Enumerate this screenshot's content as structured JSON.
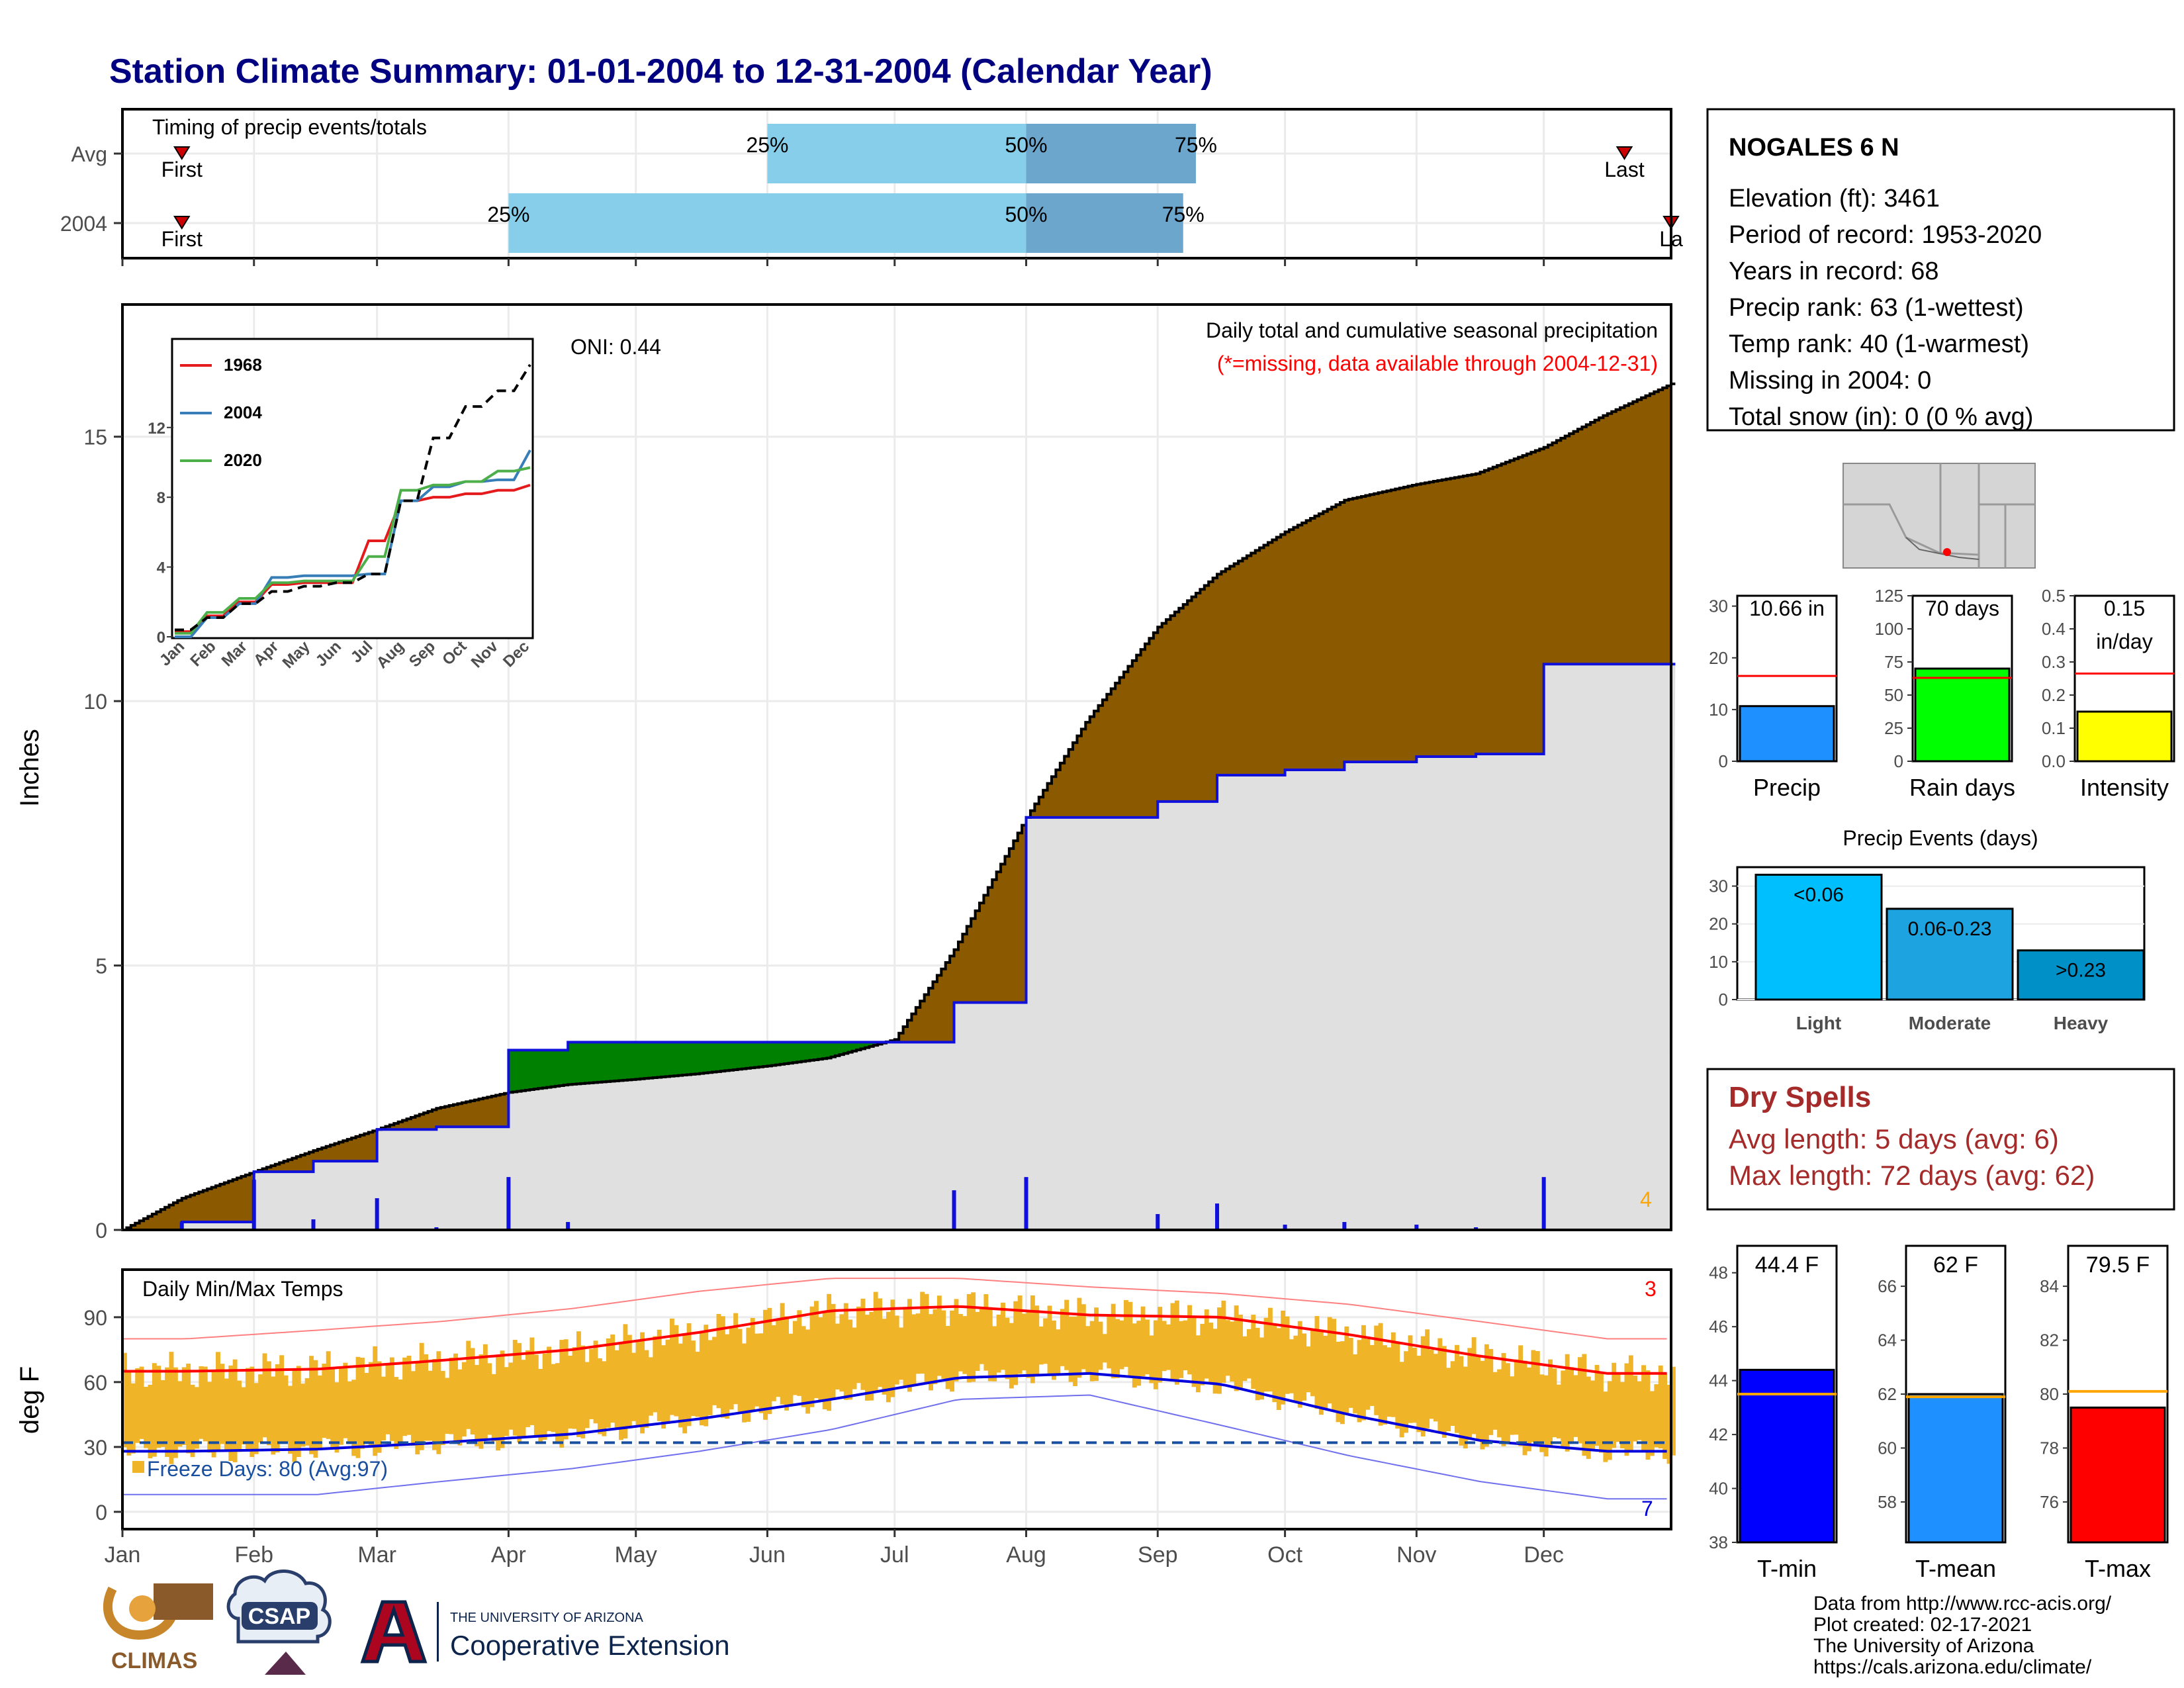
{
  "page_title": "Station Climate Summary: 01-01-2004 to 12-31-2004 (Calendar Year)",
  "timing": {
    "panel_title": "Timing of precip events/totals",
    "rows": [
      {
        "label": "Avg",
        "q25": "2004-06-01",
        "q50": "2004-08-01",
        "q75": "2004-09-10",
        "first": "2004-01-15",
        "last": "2004-12-20",
        "first_label": "First",
        "last_label": "Last"
      },
      {
        "label": "2004",
        "q25": "2004-04-01",
        "q50": "2004-08-01",
        "q75": "2004-09-07",
        "first": "2004-01-15",
        "last": "2004-12-31",
        "first_label": "First",
        "last_label": "La"
      }
    ],
    "pct_labels": [
      "25%",
      "50%",
      "75%"
    ]
  },
  "precip": {
    "ylabel": "Inches",
    "y_ticks": [
      0,
      5,
      10,
      15
    ],
    "ylim": [
      0,
      17.5
    ],
    "oni_label": "ONI: 0.44",
    "title_line": "Daily total and cumulative seasonal precipitation",
    "missing_line": "(*=missing, data available through 2004-12-31)",
    "corner_count": "4",
    "colors": {
      "above": "#8b5a00",
      "below": "#008000",
      "normal_fill": "#e0e0e0",
      "observed_line": "#1010dd",
      "avg_line": "#000000"
    }
  },
  "inset": {
    "y_ticks": [
      0,
      4,
      8,
      12
    ],
    "x_ticks": [
      "Jan",
      "Feb",
      "Mar",
      "Apr",
      "May",
      "Jun",
      "Jul",
      "Aug",
      "Sep",
      "Oct",
      "Nov",
      "Dec"
    ],
    "legend": [
      {
        "name": "1968",
        "color": "#e41a1c"
      },
      {
        "name": "2004",
        "color": "#377eb8"
      },
      {
        "name": "2020",
        "color": "#4daf4a"
      }
    ]
  },
  "temps": {
    "ylabel": "deg F",
    "panel_title": "Daily Min/Max Temps",
    "y_ticks": [
      0,
      30,
      60,
      90
    ],
    "ylim": [
      -8,
      112
    ],
    "freeze_label": "Freeze Days: 80 (Avg:97)",
    "corner_top": "3",
    "corner_bottom": "7",
    "colors": {
      "bar": "#f0b429",
      "max_line": "#ff0000",
      "min_line": "#0000dd",
      "record_max": "#ff8080",
      "record_min": "#7070ee",
      "freeze": "#1a4fa0"
    }
  },
  "months": [
    "Jan",
    "Feb",
    "Mar",
    "Apr",
    "May",
    "Jun",
    "Jul",
    "Aug",
    "Sep",
    "Oct",
    "Nov",
    "Dec"
  ],
  "station": {
    "name": "NOGALES 6 N",
    "lines": [
      "Elevation (ft): 3461",
      "Period of record: 1953-2020",
      "Years in record: 68",
      "Precip rank: 63 (1-wettest)",
      "Temp rank: 40 (1-warmest)",
      "Missing in 2004: 0",
      "Total snow (in): 0 (0 % avg)"
    ]
  },
  "mini_precip": [
    {
      "label": "Precip",
      "value_text": "10.66 in",
      "value": 10.66,
      "avg": 16.5,
      "ymax": 32,
      "ticks": [
        0,
        10,
        20,
        30
      ],
      "color": "#1e90ff"
    },
    {
      "label": "Rain days",
      "value_text": "70 days",
      "value": 70,
      "avg": 63,
      "ymax": 125,
      "ticks": [
        0,
        25,
        50,
        75,
        100,
        125
      ],
      "color": "#00ff00"
    },
    {
      "label": "Intensity",
      "value_text": "0.15",
      "value_text2": "in/day",
      "value": 0.15,
      "avg": 0.265,
      "ymax": 0.5,
      "ticks": [
        "0.0",
        "0.1",
        "0.2",
        "0.3",
        "0.4",
        "0.5"
      ],
      "color": "#ffff00"
    }
  ],
  "events": {
    "title": "Precip Events (days)",
    "categories": [
      "Light",
      "Moderate",
      "Heavy"
    ],
    "bar_labels": [
      "<0.06",
      "0.06-0.23",
      ">0.23"
    ],
    "values": [
      33,
      24,
      13
    ],
    "ticks": [
      0,
      10,
      20,
      30
    ],
    "ymax": 35,
    "colors": [
      "#00bfff",
      "#1ca3e0",
      "#0090c8"
    ]
  },
  "dry": {
    "title": "Dry Spells",
    "lines": [
      "Avg length: 5 days (avg: 6)",
      "Max length: 72 days (avg: 62)"
    ],
    "color": "#a52a2a"
  },
  "mini_temp": [
    {
      "label": "T-min",
      "value_text": "44.4 F",
      "value": 44.4,
      "avg": 43.5,
      "ymin": 38,
      "ymax": 49,
      "ticks": [
        38,
        40,
        42,
        44,
        46,
        48
      ],
      "color": "#0000ff"
    },
    {
      "label": "T-mean",
      "value_text": "62 F",
      "value": 62,
      "avg": 61.9,
      "ymin": 56.5,
      "ymax": 67.5,
      "ticks": [
        58,
        60,
        62,
        64,
        66
      ],
      "color": "#1e90ff"
    },
    {
      "label": "T-max",
      "value_text": "79.5 F",
      "value": 79.5,
      "avg": 80.1,
      "ymin": 74.5,
      "ymax": 85.5,
      "ticks": [
        76,
        78,
        80,
        82,
        84
      ],
      "color": "#ff0000"
    }
  ],
  "logos": {
    "climas": "CLIMAS",
    "csap": "CSAP",
    "ua_small": "THE UNIVERSITY OF ARIZONA",
    "ua_big": "Cooperative Extension"
  },
  "credits": [
    "Data from http://www.rcc-acis.org/",
    "Plot created: 02-17-2021",
    "The University of Arizona",
    "https://cals.arizona.edu/climate/"
  ],
  "chart_data": [
    {
      "type": "area",
      "title": "Daily total and cumulative seasonal precipitation",
      "ylabel": "Inches",
      "ylim": [
        0,
        17.5
      ],
      "x": [
        "2004-01-01",
        "2004-01-15",
        "2004-02-01",
        "2004-02-15",
        "2004-03-01",
        "2004-03-15",
        "2004-04-01",
        "2004-04-15",
        "2004-05-01",
        "2004-05-15",
        "2004-06-01",
        "2004-06-15",
        "2004-07-01",
        "2004-07-15",
        "2004-08-01",
        "2004-08-15",
        "2004-09-01",
        "2004-09-15",
        "2004-10-01",
        "2004-10-15",
        "2004-11-01",
        "2004-11-15",
        "2004-12-01",
        "2004-12-15",
        "2004-12-31"
      ],
      "series": [
        {
          "name": "avg_cumulative",
          "values": [
            0,
            0.6,
            1.1,
            1.5,
            1.9,
            2.3,
            2.6,
            2.75,
            2.85,
            2.95,
            3.1,
            3.25,
            3.6,
            5.3,
            7.8,
            9.6,
            11.4,
            12.4,
            13.2,
            13.8,
            14.1,
            14.3,
            14.8,
            15.4,
            16.0
          ]
        },
        {
          "name": "observed_cumulative",
          "values": [
            0,
            0.15,
            1.1,
            1.3,
            1.9,
            1.95,
            3.4,
            3.55,
            3.55,
            3.55,
            3.55,
            3.55,
            3.55,
            4.3,
            7.8,
            7.8,
            8.1,
            8.6,
            8.7,
            8.85,
            8.95,
            9.0,
            10.7,
            10.7,
            10.7
          ]
        }
      ]
    },
    {
      "type": "line",
      "title": "",
      "ylim": [
        0,
        17
      ],
      "x": [
        "Jan",
        "Feb",
        "Mar",
        "Apr",
        "May",
        "Jun",
        "Jul",
        "Aug",
        "Sep",
        "Oct",
        "Nov",
        "Dec"
      ],
      "series": [
        {
          "name": "1968",
          "values": [
            0.3,
            1.2,
            2.0,
            3.0,
            3.1,
            3.1,
            5.5,
            7.8,
            8.0,
            8.2,
            8.4,
            8.7
          ]
        },
        {
          "name": "2004",
          "values": [
            0,
            1.1,
            1.9,
            3.4,
            3.5,
            3.5,
            3.6,
            7.8,
            8.6,
            8.9,
            9.0,
            10.7
          ]
        },
        {
          "name": "2020",
          "values": [
            0.2,
            1.4,
            2.2,
            3.1,
            3.2,
            3.2,
            4.6,
            8.4,
            8.7,
            8.9,
            9.5,
            9.7
          ]
        },
        {
          "name": "avg",
          "values": [
            0.4,
            1.1,
            1.9,
            2.6,
            2.9,
            3.1,
            3.6,
            7.8,
            11.4,
            13.2,
            14.1,
            15.6
          ]
        }
      ]
    },
    {
      "type": "line",
      "title": "Daily Min/Max Temps",
      "ylabel": "deg F",
      "ylim": [
        -8,
        112
      ],
      "x": [
        "Jan",
        "Feb",
        "Mar",
        "Apr",
        "May",
        "Jun",
        "Jul",
        "Aug",
        "Sep",
        "Oct",
        "Nov",
        "Dec"
      ],
      "series": [
        {
          "name": "avg_max",
          "values": [
            65,
            66,
            70,
            75,
            83,
            93,
            95,
            91,
            90,
            82,
            72,
            64
          ]
        },
        {
          "name": "avg_min",
          "values": [
            28,
            29,
            32,
            36,
            43,
            52,
            62,
            64,
            59,
            45,
            33,
            28
          ]
        },
        {
          "name": "record_max",
          "values": [
            80,
            84,
            88,
            94,
            102,
            108,
            108,
            104,
            101,
            96,
            88,
            80
          ]
        },
        {
          "name": "record_min",
          "values": [
            8,
            8,
            14,
            20,
            28,
            38,
            52,
            54,
            40,
            26,
            14,
            6
          ]
        }
      ]
    }
  ]
}
